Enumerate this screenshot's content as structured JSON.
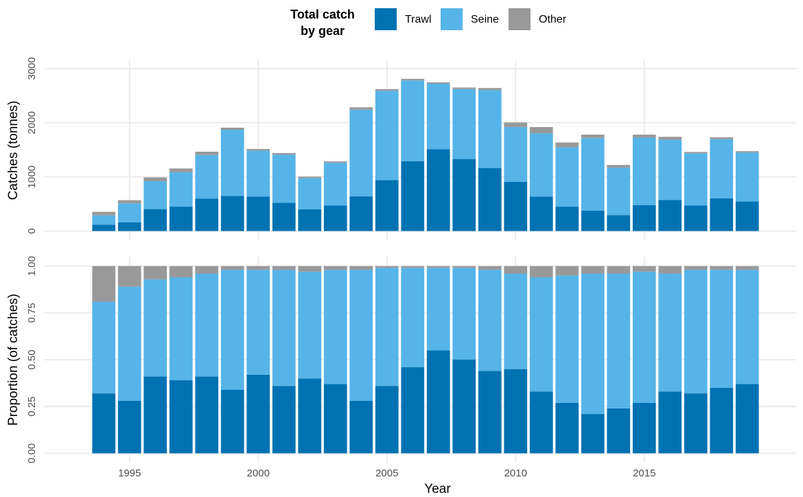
{
  "chart_data": [
    {
      "type": "stacked-bar",
      "legend_title": [
        "Total catch",
        "by gear"
      ],
      "ylabel": "Catches (tonnes)",
      "x": [
        1994,
        1995,
        1996,
        1997,
        1998,
        1999,
        2000,
        2001,
        2002,
        2003,
        2004,
        2005,
        2006,
        2007,
        2008,
        2009,
        2010,
        2011,
        2012,
        2013,
        2014,
        2015,
        2016,
        2017,
        2018,
        2019
      ],
      "series": [
        {
          "name": "Trawl",
          "color": "#0072b2",
          "values": [
            115,
            160,
            405,
            450,
            600,
            650,
            635,
            520,
            400,
            470,
            640,
            940,
            1290,
            1510,
            1330,
            1165,
            910,
            635,
            450,
            375,
            295,
            480,
            575,
            470,
            605,
            545
          ]
        },
        {
          "name": "Seine",
          "color": "#56b4e9",
          "values": [
            175,
            350,
            515,
            635,
            805,
            1220,
            850,
            890,
            575,
            790,
            1600,
            1650,
            1490,
            1210,
            1290,
            1435,
            1010,
            1170,
            1095,
            1340,
            875,
            1245,
            1110,
            965,
            1090,
            905
          ]
        },
        {
          "name": "Other",
          "color": "#999999",
          "values": [
            65,
            60,
            70,
            70,
            60,
            38,
            30,
            30,
            30,
            25,
            45,
            30,
            30,
            25,
            30,
            40,
            85,
            115,
            90,
            65,
            50,
            55,
            55,
            25,
            35,
            25
          ]
        }
      ],
      "xlim": [
        1991.7,
        2020.9
      ],
      "ylim": [
        -170,
        3150
      ],
      "yticks": [
        0,
        1000,
        2000,
        3000
      ],
      "grid": true
    },
    {
      "type": "stacked-bar",
      "ylabel": "Proportion (of catches)",
      "xlabel": "Year",
      "x": [
        1994,
        1995,
        1996,
        1997,
        1998,
        1999,
        2000,
        2001,
        2002,
        2003,
        2004,
        2005,
        2006,
        2007,
        2008,
        2009,
        2010,
        2011,
        2012,
        2013,
        2014,
        2015,
        2016,
        2017,
        2018,
        2019
      ],
      "series": [
        {
          "values": [
            0.32,
            0.28,
            0.41,
            0.39,
            0.41,
            0.34,
            0.42,
            0.36,
            0.4,
            0.37,
            0.28,
            0.36,
            0.46,
            0.55,
            0.5,
            0.44,
            0.45,
            0.33,
            0.27,
            0.21,
            0.24,
            0.27,
            0.33,
            0.32,
            0.35,
            0.37
          ]
        },
        {
          "values": [
            0.49,
            0.61,
            0.52,
            0.55,
            0.55,
            0.64,
            0.56,
            0.62,
            0.57,
            0.61,
            0.7,
            0.63,
            0.53,
            0.44,
            0.49,
            0.54,
            0.51,
            0.61,
            0.68,
            0.75,
            0.72,
            0.7,
            0.63,
            0.66,
            0.63,
            0.61
          ]
        },
        {
          "values": [
            0.19,
            0.11,
            0.07,
            0.06,
            0.04,
            0.02,
            0.02,
            0.02,
            0.03,
            0.02,
            0.02,
            0.01,
            0.01,
            0.01,
            0.01,
            0.02,
            0.04,
            0.06,
            0.05,
            0.04,
            0.04,
            0.03,
            0.04,
            0.02,
            0.02,
            0.02
          ]
        }
      ],
      "xlim": [
        1991.7,
        2020.9
      ],
      "ylim": [
        -0.05,
        1.05
      ],
      "xticks": [
        1995,
        2000,
        2005,
        2010,
        2015
      ],
      "yticks": [
        {
          "value": 0,
          "label": "0.00"
        },
        {
          "value": 0.25,
          "label": "0.25"
        },
        {
          "value": 0.5,
          "label": "0.50"
        },
        {
          "value": 0.75,
          "label": "0.75"
        },
        {
          "value": 1,
          "label": "1.00"
        }
      ],
      "grid": true
    }
  ]
}
